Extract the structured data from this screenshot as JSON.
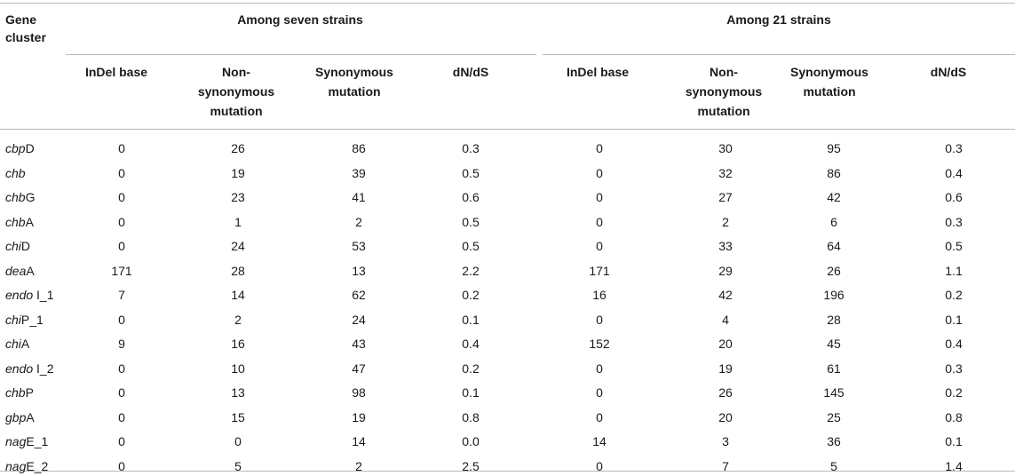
{
  "header": {
    "gene_cluster": [
      "Gene",
      "cluster"
    ],
    "group_seven": "Among seven strains",
    "group_21": "Among 21 strains",
    "col_indel": "InDel base",
    "col_nonsyn": [
      "Non-",
      "synonymous",
      "mutation"
    ],
    "col_syn": [
      "Synonymous",
      "mutation"
    ],
    "col_dnds": "dN/dS"
  },
  "rows": [
    {
      "gene_italic": "cbp",
      "gene_rest": "D",
      "seven": [
        "0",
        "26",
        "86",
        "0.3"
      ],
      "t21": [
        "0",
        "30",
        "95",
        "0.3"
      ]
    },
    {
      "gene_italic": "chb",
      "gene_rest": "",
      "seven": [
        "0",
        "19",
        "39",
        "0.5"
      ],
      "t21": [
        "0",
        "32",
        "86",
        "0.4"
      ]
    },
    {
      "gene_italic": "chb",
      "gene_rest": "G",
      "seven": [
        "0",
        "23",
        "41",
        "0.6"
      ],
      "t21": [
        "0",
        "27",
        "42",
        "0.6"
      ]
    },
    {
      "gene_italic": "chb",
      "gene_rest": "A",
      "seven": [
        "0",
        "1",
        "2",
        "0.5"
      ],
      "t21": [
        "0",
        "2",
        "6",
        "0.3"
      ]
    },
    {
      "gene_italic": "chi",
      "gene_rest": "D",
      "seven": [
        "0",
        "24",
        "53",
        "0.5"
      ],
      "t21": [
        "0",
        "33",
        "64",
        "0.5"
      ]
    },
    {
      "gene_italic": "dea",
      "gene_rest": "A",
      "seven": [
        "171",
        "28",
        "13",
        "2.2"
      ],
      "t21": [
        "171",
        "29",
        "26",
        "1.1"
      ]
    },
    {
      "gene_italic": "endo",
      "gene_rest": " I_1",
      "seven": [
        "7",
        "14",
        "62",
        "0.2"
      ],
      "t21": [
        "16",
        "42",
        "196",
        "0.2"
      ]
    },
    {
      "gene_italic": "chi",
      "gene_rest": "P_1",
      "seven": [
        "0",
        "2",
        "24",
        "0.1"
      ],
      "t21": [
        "0",
        "4",
        "28",
        "0.1"
      ]
    },
    {
      "gene_italic": "chi",
      "gene_rest": "A",
      "seven": [
        "9",
        "16",
        "43",
        "0.4"
      ],
      "t21": [
        "152",
        "20",
        "45",
        "0.4"
      ]
    },
    {
      "gene_italic": "endo",
      "gene_rest": " I_2",
      "seven": [
        "0",
        "10",
        "47",
        "0.2"
      ],
      "t21": [
        "0",
        "19",
        "61",
        "0.3"
      ]
    },
    {
      "gene_italic": "chb",
      "gene_rest": "P",
      "seven": [
        "0",
        "13",
        "98",
        "0.1"
      ],
      "t21": [
        "0",
        "26",
        "145",
        "0.2"
      ]
    },
    {
      "gene_italic": "gbp",
      "gene_rest": "A",
      "seven": [
        "0",
        "15",
        "19",
        "0.8"
      ],
      "t21": [
        "0",
        "20",
        "25",
        "0.8"
      ]
    },
    {
      "gene_italic": "nag",
      "gene_rest": "E_1",
      "seven": [
        "0",
        "0",
        "14",
        "0.0"
      ],
      "t21": [
        "14",
        "3",
        "36",
        "0.1"
      ]
    },
    {
      "gene_italic": "nag",
      "gene_rest": "E_2",
      "seven": [
        "0",
        "5",
        "2",
        "2.5"
      ],
      "t21": [
        "0",
        "7",
        "5",
        "1.4"
      ]
    }
  ]
}
